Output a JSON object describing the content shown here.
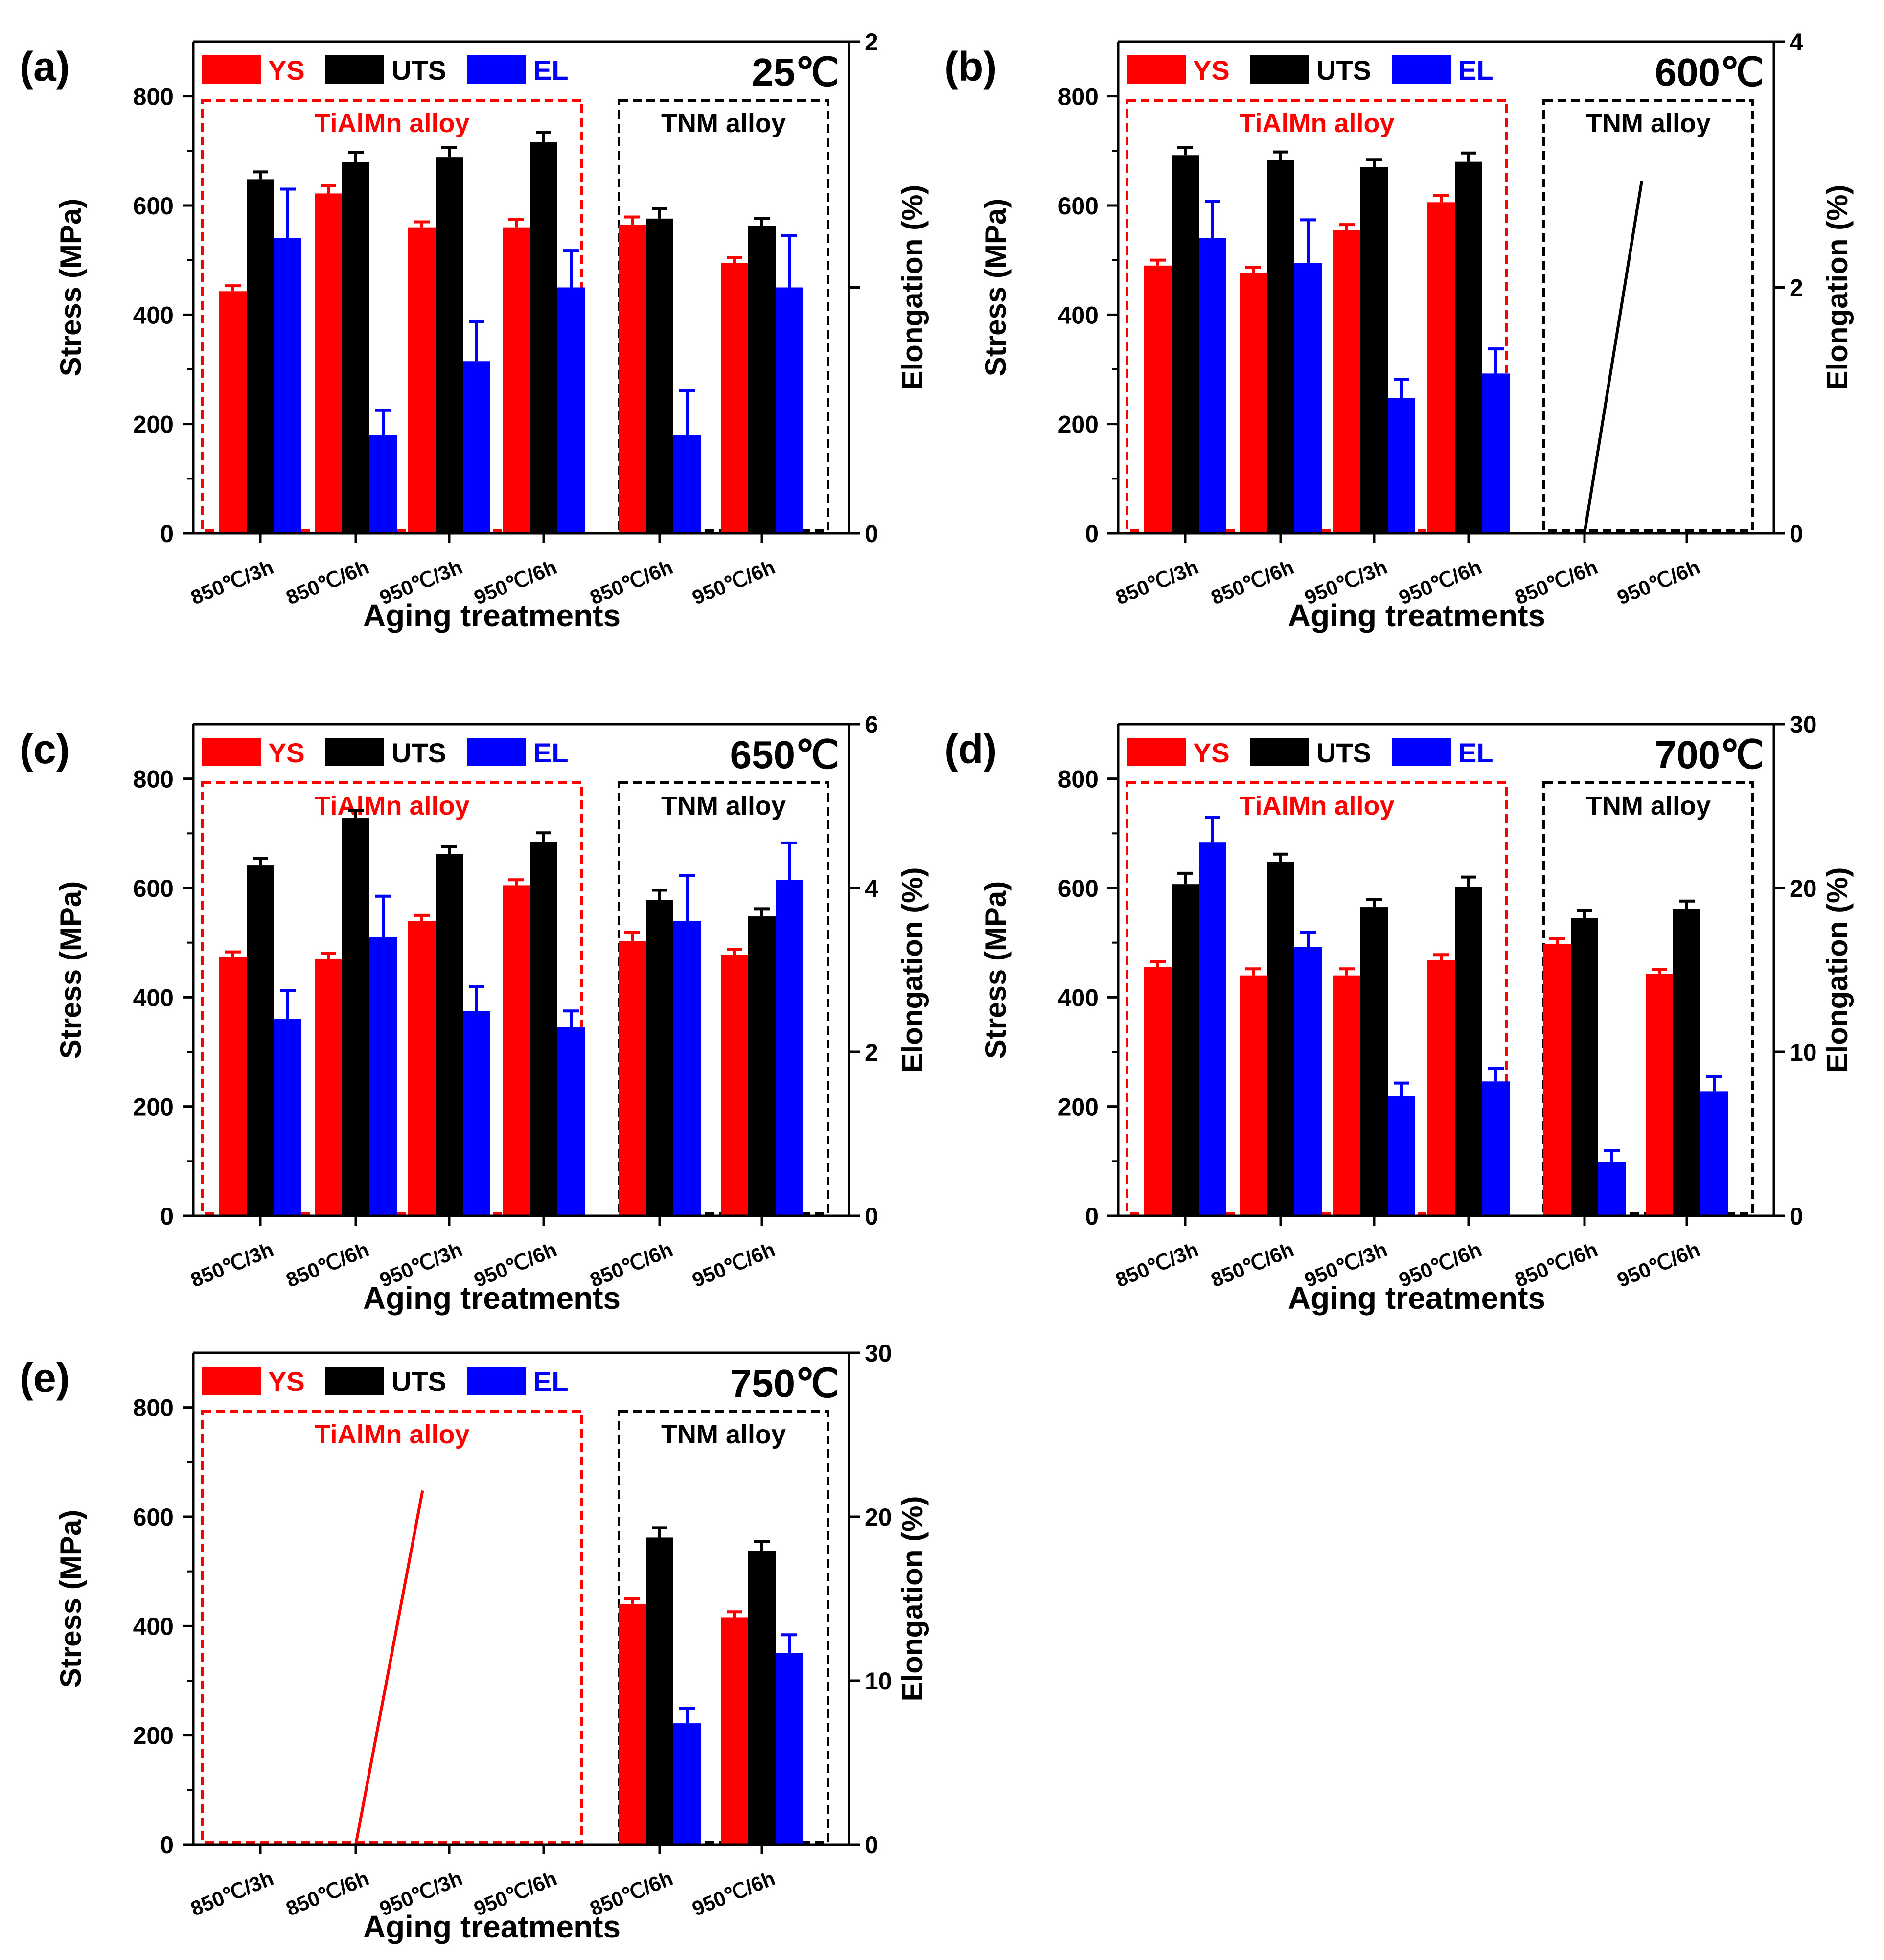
{
  "figure": {
    "colors": {
      "YS": "#ff0000",
      "UTS": "#000000",
      "EL": "#0000ff",
      "tialmn_box": "#ff0000",
      "tnm_box": "#000000"
    }
  },
  "chart_data": [
    {
      "panel_label": "(a)",
      "temperature": "25℃",
      "type": "bar",
      "categories": [
        "850℃/3h",
        "850℃/6h",
        "950℃/3h",
        "950℃/6h",
        "850℃/6h",
        "950℃/6h"
      ],
      "groups": [
        {
          "label": "TiAlMn alloy",
          "first": 0,
          "last": 3
        },
        {
          "label": "TNM alloy",
          "first": 4,
          "last": 5
        }
      ],
      "legend": [
        "YS",
        "UTS",
        "EL"
      ],
      "xlabel": "Aging treatments",
      "ylabel": "Stress (MPa)",
      "y2label": "Elongation (%)",
      "ylim": [
        0,
        900
      ],
      "yticks": [
        0,
        200,
        400,
        600,
        800
      ],
      "y2lim": [
        0,
        2
      ],
      "y2ticks": [
        0,
        1,
        2
      ],
      "y2ticklabels": [
        "0",
        "",
        "2"
      ],
      "series": [
        {
          "name": "YS",
          "axis": "left",
          "values": [
            443,
            622,
            560,
            560,
            565,
            495
          ],
          "errors": [
            10,
            14,
            10,
            14,
            14,
            10
          ]
        },
        {
          "name": "UTS",
          "axis": "right",
          "values": [
            1.44,
            1.51,
            1.53,
            1.59,
            1.28,
            1.25
          ],
          "errors": [
            0.03,
            0.04,
            0.04,
            0.04,
            0.04,
            0.03
          ]
        },
        {
          "name": "EL",
          "axis": "right",
          "values": [
            1.2,
            0.4,
            0.7,
            1.0,
            0.4,
            1.0
          ],
          "errors": [
            0.2,
            0.1,
            0.16,
            0.15,
            0.18,
            0.21
          ]
        }
      ],
      "annotation_line": null
    },
    {
      "panel_label": "(b)",
      "temperature": "600℃",
      "type": "bar",
      "categories": [
        "850℃/3h",
        "850℃/6h",
        "950℃/3h",
        "950℃/6h",
        "850℃/6h",
        "950℃/6h"
      ],
      "groups": [
        {
          "label": "TiAlMn alloy",
          "first": 0,
          "last": 3
        },
        {
          "label": "TNM alloy",
          "first": 4,
          "last": 5
        }
      ],
      "legend": [
        "YS",
        "UTS",
        "EL"
      ],
      "xlabel": "Aging treatments",
      "ylabel": "Stress (MPa)",
      "y2label": "Elongation (%)",
      "ylim": [
        0,
        900
      ],
      "yticks": [
        0,
        200,
        400,
        600,
        800
      ],
      "y2lim": [
        0,
        4
      ],
      "y2ticks": [
        0,
        2,
        4
      ],
      "y2ticklabels": [
        "0",
        "2",
        "4"
      ],
      "series": [
        {
          "name": "YS",
          "axis": "left",
          "values": [
            490,
            477,
            555,
            606,
            null,
            null
          ],
          "errors": [
            10,
            10,
            10,
            12,
            null,
            null
          ]
        },
        {
          "name": "UTS",
          "axis": "left",
          "values": [
            692,
            684,
            670,
            680,
            null,
            null
          ],
          "errors": [
            14,
            14,
            14,
            16,
            null,
            null
          ]
        },
        {
          "name": "EL",
          "axis": "right",
          "values": [
            2.4,
            2.2,
            1.1,
            1.3,
            null,
            null
          ],
          "errors": [
            0.3,
            0.35,
            0.15,
            0.2,
            null,
            null
          ]
        }
      ],
      "annotation_line": {
        "color": "#000000",
        "x_from": 4,
        "x_to": 4.6,
        "y_from": 0,
        "y_to": 645
      }
    },
    {
      "panel_label": "(c)",
      "temperature": "650℃",
      "type": "bar",
      "categories": [
        "850℃/3h",
        "850℃/6h",
        "950℃/3h",
        "950℃/6h",
        "850℃/6h",
        "950℃/6h"
      ],
      "groups": [
        {
          "label": "TiAlMn alloy",
          "first": 0,
          "last": 3
        },
        {
          "label": "TNM alloy",
          "first": 4,
          "last": 5
        }
      ],
      "legend": [
        "YS",
        "UTS",
        "EL"
      ],
      "xlabel": "Aging treatments",
      "ylabel": "Stress (MPa)",
      "y2label": "Elongation (%)",
      "ylim": [
        0,
        900
      ],
      "yticks": [
        0,
        200,
        400,
        600,
        800
      ],
      "y2lim": [
        0,
        6
      ],
      "y2ticks": [
        0,
        2,
        4,
        6
      ],
      "y2ticklabels": [
        "0",
        "2",
        "4",
        "6"
      ],
      "series": [
        {
          "name": "YS",
          "axis": "left",
          "values": [
            473,
            470,
            540,
            605,
            503,
            478
          ],
          "errors": [
            10,
            10,
            10,
            10,
            16,
            10
          ]
        },
        {
          "name": "UTS",
          "axis": "left",
          "values": [
            642,
            728,
            662,
            685,
            578,
            548
          ],
          "errors": [
            12,
            14,
            14,
            16,
            18,
            14
          ]
        },
        {
          "name": "EL",
          "axis": "right",
          "values": [
            2.4,
            3.4,
            2.5,
            2.3,
            3.6,
            4.1
          ],
          "errors": [
            0.35,
            0.5,
            0.3,
            0.2,
            0.55,
            0.45
          ]
        }
      ],
      "annotation_line": null
    },
    {
      "panel_label": "(d)",
      "temperature": "700℃",
      "type": "bar",
      "categories": [
        "850℃/3h",
        "850℃/6h",
        "950℃/3h",
        "950℃/6h",
        "850℃/6h",
        "950℃/6h"
      ],
      "groups": [
        {
          "label": "TiAlMn alloy",
          "first": 0,
          "last": 3
        },
        {
          "label": "TNM alloy",
          "first": 4,
          "last": 5
        }
      ],
      "legend": [
        "YS",
        "UTS",
        "EL"
      ],
      "xlabel": "Aging treatments",
      "ylabel": "Stress (MPa)",
      "y2label": "Elongation (%)",
      "ylim": [
        0,
        900
      ],
      "yticks": [
        0,
        200,
        400,
        600,
        800
      ],
      "y2lim": [
        0,
        30
      ],
      "y2ticks": [
        0,
        10,
        20,
        30
      ],
      "y2ticklabels": [
        "0",
        "10",
        "20",
        "30"
      ],
      "series": [
        {
          "name": "YS",
          "axis": "left",
          "values": [
            455,
            440,
            440,
            468,
            497,
            443
          ],
          "errors": [
            10,
            12,
            12,
            10,
            10,
            8
          ]
        },
        {
          "name": "UTS",
          "axis": "left",
          "values": [
            607,
            648,
            565,
            602,
            545,
            562
          ],
          "errors": [
            20,
            14,
            14,
            18,
            14,
            14
          ]
        },
        {
          "name": "EL",
          "axis": "right",
          "values": [
            22.8,
            16.4,
            7.3,
            8.2,
            3.3,
            7.6
          ],
          "errors": [
            1.5,
            0.9,
            0.8,
            0.8,
            0.7,
            0.9
          ]
        }
      ],
      "annotation_line": null
    },
    {
      "panel_label": "(e)",
      "temperature": "750℃",
      "type": "bar",
      "categories": [
        "850℃/3h",
        "850℃/6h",
        "950℃/3h",
        "950℃/6h",
        "850℃/6h",
        "950℃/6h"
      ],
      "groups": [
        {
          "label": "TiAlMn alloy",
          "first": 0,
          "last": 3
        },
        {
          "label": "TNM alloy",
          "first": 4,
          "last": 5
        }
      ],
      "legend": [
        "YS",
        "UTS",
        "EL"
      ],
      "xlabel": "Aging treatments",
      "ylabel": "Stress (MPa)",
      "y2label": "Elongation (%)",
      "ylim": [
        0,
        900
      ],
      "yticks": [
        0,
        200,
        400,
        600,
        800
      ],
      "y2lim": [
        0,
        30
      ],
      "y2ticks": [
        0,
        10,
        20,
        30
      ],
      "y2ticklabels": [
        "0",
        "10",
        "20",
        "30"
      ],
      "series": [
        {
          "name": "YS",
          "axis": "left",
          "values": [
            null,
            null,
            null,
            null,
            440,
            416
          ],
          "errors": [
            null,
            null,
            null,
            null,
            10,
            10
          ]
        },
        {
          "name": "UTS",
          "axis": "left",
          "values": [
            null,
            null,
            null,
            null,
            562,
            537
          ],
          "errors": [
            null,
            null,
            null,
            null,
            18,
            18
          ]
        },
        {
          "name": "EL",
          "axis": "right",
          "values": [
            null,
            null,
            null,
            null,
            7.4,
            11.7
          ],
          "errors": [
            null,
            null,
            null,
            null,
            0.9,
            1.1
          ]
        }
      ],
      "annotation_line": {
        "color": "#ff0000",
        "x_from": 1,
        "x_to": 1.7,
        "y_from": 0,
        "y_to": 648
      }
    }
  ]
}
